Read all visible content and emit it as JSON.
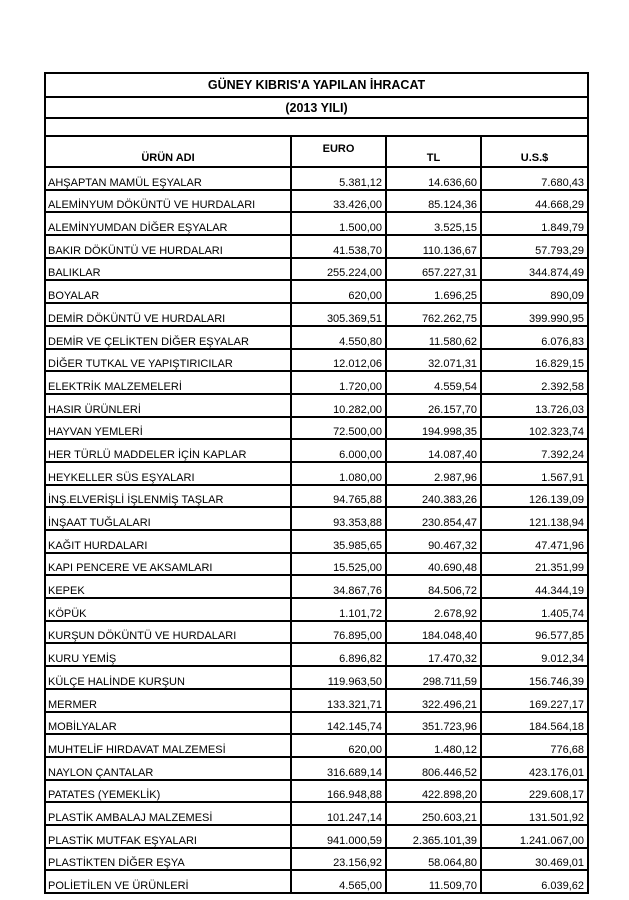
{
  "report": {
    "title": "GÜNEY KIBRIS'A YAPILAN İHRACAT",
    "subtitle": "(2013 YILI)"
  },
  "table": {
    "columns": [
      "ÜRÜN ADI",
      "EURO",
      "TL",
      "U.S.$"
    ],
    "rows": [
      {
        "name": "AHŞAPTAN MAMÜL EŞYALAR",
        "euro": "5.381,12",
        "tl": "14.636,60",
        "usd": "7.680,43"
      },
      {
        "name": "ALEMİNYUM DÖKÜNTÜ VE HURDALARI",
        "euro": "33.426,00",
        "tl": "85.124,36",
        "usd": "44.668,29"
      },
      {
        "name": "ALEMİNYUMDAN DİĞER EŞYALAR",
        "euro": "1.500,00",
        "tl": "3.525,15",
        "usd": "1.849,79"
      },
      {
        "name": "BAKIR DÖKÜNTÜ VE HURDALARI",
        "euro": "41.538,70",
        "tl": "110.136,67",
        "usd": "57.793,29"
      },
      {
        "name": "BALIKLAR",
        "euro": "255.224,00",
        "tl": "657.227,31",
        "usd": "344.874,49"
      },
      {
        "name": "BOYALAR",
        "euro": "620,00",
        "tl": "1.696,25",
        "usd": "890,09"
      },
      {
        "name": "DEMİR DÖKÜNTÜ VE HURDALARI",
        "euro": "305.369,51",
        "tl": "762.262,75",
        "usd": "399.990,95"
      },
      {
        "name": "DEMİR VE ÇELİKTEN DİĞER EŞYALAR",
        "euro": "4.550,80",
        "tl": "11.580,62",
        "usd": "6.076,83"
      },
      {
        "name": "DİĞER TUTKAL VE YAPIŞTIRICILAR",
        "euro": "12.012,06",
        "tl": "32.071,31",
        "usd": "16.829,15"
      },
      {
        "name": "ELEKTRİK MALZEMELERİ",
        "euro": "1.720,00",
        "tl": "4.559,54",
        "usd": "2.392,58"
      },
      {
        "name": "HASIR ÜRÜNLERİ",
        "euro": "10.282,00",
        "tl": "26.157,70",
        "usd": "13.726,03"
      },
      {
        "name": "HAYVAN YEMLERİ",
        "euro": "72.500,00",
        "tl": "194.998,35",
        "usd": "102.323,74"
      },
      {
        "name": "HER TÜRLÜ MADDELER İÇİN KAPLAR",
        "euro": "6.000,00",
        "tl": "14.087,40",
        "usd": "7.392,24"
      },
      {
        "name": "HEYKELLER SÜS EŞYALARI",
        "euro": "1.080,00",
        "tl": "2.987,96",
        "usd": "1.567,91"
      },
      {
        "name": "İNŞ.ELVERİŞLİ İŞLENMİŞ TAŞLAR",
        "euro": "94.765,88",
        "tl": "240.383,26",
        "usd": "126.139,09"
      },
      {
        "name": "İNŞAAT TUĞLALARI",
        "euro": "93.353,88",
        "tl": "230.854,47",
        "usd": "121.138,94"
      },
      {
        "name": "KAĞIT HURDALARI",
        "euro": "35.985,65",
        "tl": "90.467,32",
        "usd": "47.471,96"
      },
      {
        "name": "KAPI PENCERE VE AKSAMLARI",
        "euro": "15.525,00",
        "tl": "40.690,48",
        "usd": "21.351,99"
      },
      {
        "name": "KEPEK",
        "euro": "34.867,76",
        "tl": "84.506,72",
        "usd": "44.344,19"
      },
      {
        "name": "KÖPÜK",
        "euro": "1.101,72",
        "tl": "2.678,92",
        "usd": "1.405,74"
      },
      {
        "name": "KURŞUN DÖKÜNTÜ VE HURDALARI",
        "euro": "76.895,00",
        "tl": "184.048,40",
        "usd": "96.577,85"
      },
      {
        "name": "KURU YEMİŞ",
        "euro": "6.896,82",
        "tl": "17.470,32",
        "usd": "9.012,34"
      },
      {
        "name": "KÜLÇE HALİNDE KURŞUN",
        "euro": "119.963,50",
        "tl": "298.711,59",
        "usd": "156.746,39"
      },
      {
        "name": "MERMER",
        "euro": "133.321,71",
        "tl": "322.496,21",
        "usd": "169.227,17"
      },
      {
        "name": "MOBİLYALAR",
        "euro": "142.145,74",
        "tl": "351.723,96",
        "usd": "184.564,18"
      },
      {
        "name": "MUHTELİF HIRDAVAT MALZEMESİ",
        "euro": "620,00",
        "tl": "1.480,12",
        "usd": "776,68"
      },
      {
        "name": "NAYLON ÇANTALAR",
        "euro": "316.689,14",
        "tl": "806.446,52",
        "usd": "423.176,01"
      },
      {
        "name": "PATATES (YEMEKLİK)",
        "euro": "166.948,88",
        "tl": "422.898,20",
        "usd": "229.608,17"
      },
      {
        "name": "PLASTİK AMBALAJ MALZEMESİ",
        "euro": "101.247,14",
        "tl": "250.603,21",
        "usd": "131.501,92"
      },
      {
        "name": "PLASTİK MUTFAK EŞYALARI",
        "euro": "941.000,59",
        "tl": "2.365.101,39",
        "usd": "1.241.067,00"
      },
      {
        "name": "PLASTİKTEN DİĞER EŞYA",
        "euro": "23.156,92",
        "tl": "58.064,80",
        "usd": "30.469,01"
      },
      {
        "name": "POLİETİLEN VE ÜRÜNLERİ",
        "euro": "4.565,00",
        "tl": "11.509,70",
        "usd": "6.039,62"
      }
    ]
  },
  "colors": {
    "background": "#ffffff",
    "text": "#000000",
    "border": "#000000"
  }
}
